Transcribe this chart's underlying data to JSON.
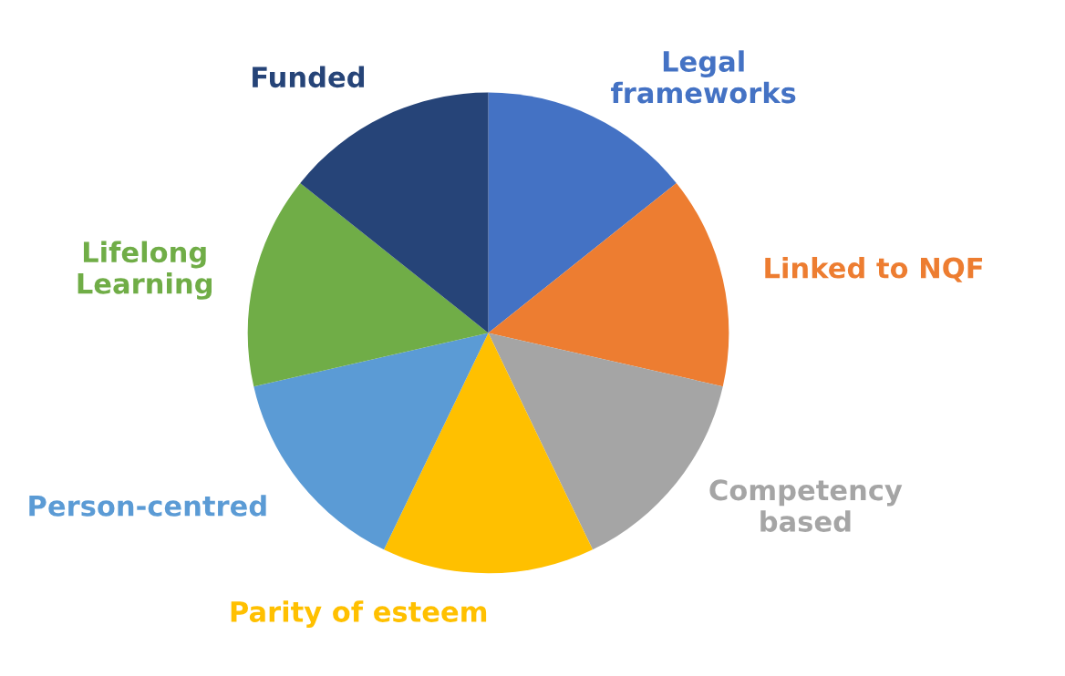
{
  "chart_data": {
    "type": "pie",
    "categories": [
      "Legal\nframeworks",
      "Linked to NQF",
      "Competency\nbased",
      "Parity of esteem",
      "Person-centred",
      "Lifelong\nLearning",
      "Funded"
    ],
    "values": [
      14.29,
      14.29,
      14.29,
      14.29,
      14.29,
      14.29,
      14.29
    ],
    "colors": [
      "#4472c4",
      "#ed7d31",
      "#a5a5a5",
      "#ffc000",
      "#5b9bd5",
      "#70ad47",
      "#264478"
    ],
    "legend": false
  }
}
